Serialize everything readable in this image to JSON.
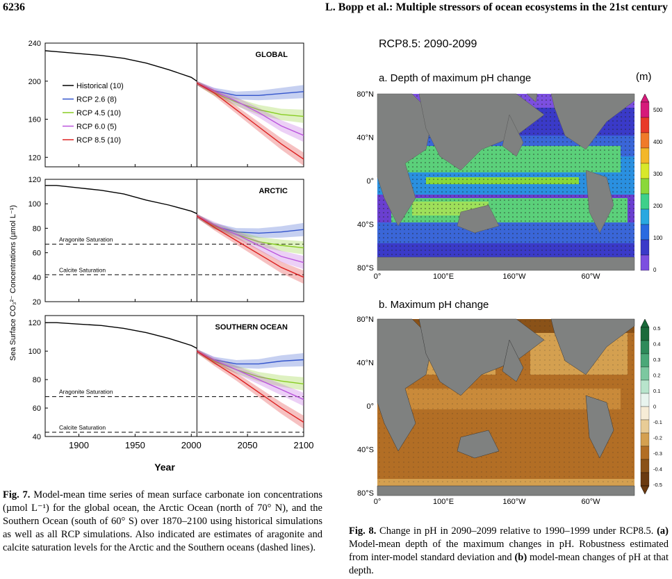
{
  "header": {
    "page_number": "6236",
    "running_title": "L. Bopp et al.: Multiple stressors of ocean ecosystems in the 21st century"
  },
  "fig7": {
    "ylabel": "Sea Surface CO₃²⁻ Concentrations (µmol L⁻¹)",
    "xlabel": "Year",
    "x_ticks": [
      "1900",
      "1950",
      "2000",
      "2050",
      "2100"
    ],
    "legend": [
      "Historical (10)",
      "RCP 2.6 (8)",
      "RCP 4.5 (10)",
      "RCP 6.0 (5)",
      "RCP 8.5 (10)"
    ],
    "colors": {
      "historical": "#000000",
      "rcp26": "#3355cc",
      "rcp45": "#88cc22",
      "rcp60": "#bb55dd",
      "rcp85": "#dd2222"
    },
    "sat_labels": {
      "aragonite": "Aragonite Saturation",
      "calcite": "Calcite Saturation"
    }
  },
  "chart_data": [
    {
      "type": "line",
      "title": "GLOBAL",
      "xlim": [
        1870,
        2100
      ],
      "ylim": [
        110,
        240
      ],
      "y_ticks": [
        "240",
        "200",
        "160",
        "120"
      ],
      "series": [
        {
          "name": "Historical (10)",
          "x": [
            1870,
            1880,
            1900,
            1920,
            1940,
            1960,
            1980,
            2000,
            2005
          ],
          "y": [
            232,
            231,
            229,
            227,
            224,
            219,
            212,
            204,
            200
          ]
        },
        {
          "name": "RCP 2.6 (8)",
          "x": [
            2005,
            2020,
            2040,
            2060,
            2080,
            2100
          ],
          "y": [
            198,
            190,
            185,
            185,
            187,
            189
          ]
        },
        {
          "name": "RCP 4.5 (10)",
          "x": [
            2005,
            2020,
            2040,
            2060,
            2080,
            2100
          ],
          "y": [
            198,
            188,
            178,
            170,
            165,
            163
          ]
        },
        {
          "name": "RCP 6.0 (5)",
          "x": [
            2005,
            2020,
            2040,
            2060,
            2080,
            2100
          ],
          "y": [
            198,
            190,
            179,
            167,
            153,
            143
          ]
        },
        {
          "name": "RCP 8.5 (10)",
          "x": [
            2005,
            2020,
            2040,
            2060,
            2080,
            2100
          ],
          "y": [
            198,
            188,
            170,
            152,
            134,
            118
          ]
        }
      ]
    },
    {
      "type": "line",
      "title": "ARCTIC",
      "xlim": [
        1870,
        2100
      ],
      "ylim": [
        20,
        120
      ],
      "y_ticks": [
        "120",
        "100",
        "80",
        "60",
        "40",
        "20"
      ],
      "aragonite_saturation": 67,
      "calcite_saturation": 42,
      "series": [
        {
          "name": "Historical (10)",
          "x": [
            1870,
            1880,
            1900,
            1920,
            1940,
            1960,
            1980,
            2000,
            2005
          ],
          "y": [
            115,
            115,
            113,
            111,
            108,
            103,
            99,
            94,
            92
          ]
        },
        {
          "name": "RCP 2.6 (8)",
          "x": [
            2005,
            2020,
            2040,
            2060,
            2080,
            2100
          ],
          "y": [
            90,
            82,
            77,
            76,
            77,
            79
          ]
        },
        {
          "name": "RCP 4.5 (10)",
          "x": [
            2005,
            2020,
            2040,
            2060,
            2080,
            2100
          ],
          "y": [
            90,
            82,
            75,
            69,
            66,
            64
          ]
        },
        {
          "name": "RCP 6.0 (5)",
          "x": [
            2005,
            2020,
            2040,
            2060,
            2080,
            2100
          ],
          "y": [
            90,
            83,
            75,
            66,
            57,
            52
          ]
        },
        {
          "name": "RCP 8.5 (10)",
          "x": [
            2005,
            2020,
            2040,
            2060,
            2080,
            2100
          ],
          "y": [
            90,
            81,
            70,
            59,
            48,
            40
          ]
        }
      ]
    },
    {
      "type": "line",
      "title": "SOUTHERN OCEAN",
      "xlim": [
        1870,
        2100
      ],
      "ylim": [
        40,
        125
      ],
      "y_ticks": [
        "120",
        "100",
        "80",
        "60",
        "40"
      ],
      "aragonite_saturation": 68,
      "calcite_saturation": 43,
      "series": [
        {
          "name": "Historical (10)",
          "x": [
            1870,
            1880,
            1900,
            1920,
            1940,
            1960,
            1980,
            2000,
            2005
          ],
          "y": [
            120,
            120,
            119,
            118,
            116,
            113,
            109,
            104,
            102
          ]
        },
        {
          "name": "RCP 2.6 (8)",
          "x": [
            2005,
            2020,
            2040,
            2060,
            2080,
            2100
          ],
          "y": [
            100,
            94,
            91,
            91,
            93,
            94
          ]
        },
        {
          "name": "RCP 4.5 (10)",
          "x": [
            2005,
            2020,
            2040,
            2060,
            2080,
            2100
          ],
          "y": [
            100,
            93,
            87,
            82,
            79,
            77
          ]
        },
        {
          "name": "RCP 6.0 (5)",
          "x": [
            2005,
            2020,
            2040,
            2060,
            2080,
            2100
          ],
          "y": [
            100,
            94,
            87,
            80,
            73,
            66
          ]
        },
        {
          "name": "RCP 8.5 (10)",
          "x": [
            2005,
            2020,
            2040,
            2060,
            2080,
            2100
          ],
          "y": [
            100,
            92,
            82,
            71,
            60,
            50
          ]
        }
      ]
    }
  ],
  "fig8": {
    "title": "RCP8.5: 2090-2099",
    "panel_a": {
      "title": "a. Depth of maximum pH change",
      "unit": "(m)",
      "lat_labels": [
        "80°N",
        "40°N",
        "0°",
        "40°S",
        "80°S"
      ],
      "lon_labels": [
        "0°",
        "100°E",
        "160°W",
        "60°W"
      ],
      "colorbar_labels": [
        "500",
        "400",
        "300",
        "200",
        "100",
        "0"
      ]
    },
    "panel_b": {
      "title": "b. Maximum pH change",
      "lat_labels": [
        "80°N",
        "40°N",
        "0°",
        "40°S",
        "80°S"
      ],
      "lon_labels": [
        "0°",
        "100°E",
        "160°W",
        "60°W"
      ],
      "colorbar_labels": [
        "0.5",
        "0.4",
        "0.3",
        "0.2",
        "0.1",
        "0",
        "-0.1",
        "-0.2",
        "-0.3",
        "-0.4",
        "-0.5"
      ]
    }
  },
  "captions": {
    "fig7_label": "Fig. 7.",
    "fig7_text": "Model-mean time series of mean surface carbonate ion concentrations (µmol L⁻¹) for the global ocean, the Arctic Ocean (north of 70° N), and the Southern Ocean (south of 60° S) over 1870–2100 using historical simulations as well as all RCP simulations. Also indicated are estimates of aragonite and calcite saturation levels for the Arctic and the Southern oceans (dashed lines).",
    "fig8_label": "Fig. 8.",
    "fig8_text_1": "Change in pH in 2090–2099 relative to 1990–1999 under RCP8.5.",
    "fig8_a": "(a)",
    "fig8_text_2": "Model-mean depth of the maximum changes in pH. Robustness estimated from inter-model standard deviation and",
    "fig8_b": "(b)",
    "fig8_text_3": "model-mean changes of pH at that depth."
  }
}
